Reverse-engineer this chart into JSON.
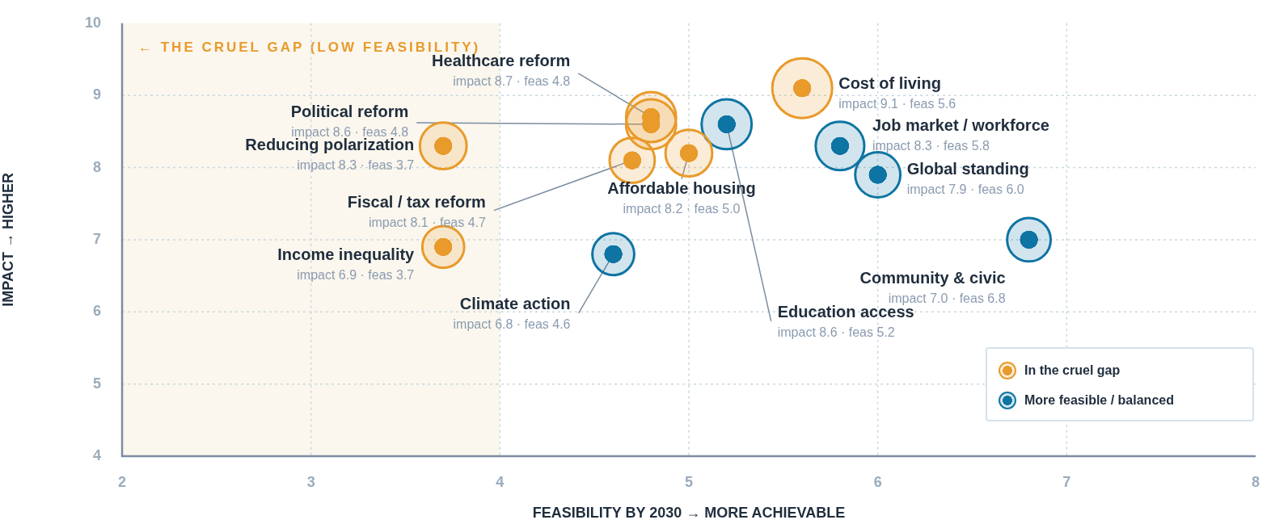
{
  "chart_data": {
    "type": "bubble",
    "xlabel": "FEASIBILITY BY 2030 → MORE ACHIEVABLE",
    "ylabel": "IMPACT → HIGHER",
    "xlim": [
      2,
      8
    ],
    "xticks": [
      2,
      3,
      4,
      5,
      6,
      7,
      8
    ],
    "ylim": [
      4,
      10
    ],
    "yticks": [
      4,
      5,
      6,
      7,
      8,
      9,
      10
    ],
    "grid": true,
    "legend": "bottom right",
    "bands": [
      {
        "axis": "x",
        "from": 2,
        "to": 4,
        "label": "← THE CRUEL GAP (LOW FEASIBILITY)",
        "color": "#fbf7ee"
      }
    ],
    "annotations": [
      {
        "text": "Healthcare reform",
        "x": 4.8,
        "y": 8.7
      },
      {
        "text": "Political reform",
        "x": 4.8,
        "y": 8.6
      },
      {
        "text": "Reducing polarization",
        "x": 3.7,
        "y": 8.3
      },
      {
        "text": "Fiscal / tax reform",
        "x": 4.7,
        "y": 8.1
      },
      {
        "text": "Income inequality",
        "x": 3.7,
        "y": 6.9
      },
      {
        "text": "Affordable housing",
        "x": 5.0,
        "y": 8.2
      },
      {
        "text": "Cost of living",
        "x": 5.6,
        "y": 9.1
      },
      {
        "text": "Education access",
        "x": 5.2,
        "y": 8.6
      },
      {
        "text": "Job market / workforce",
        "x": 5.8,
        "y": 8.3
      },
      {
        "text": "Global standing",
        "x": 6.0,
        "y": 7.9
      },
      {
        "text": "Community & civic",
        "x": 6.8,
        "y": 7.0
      },
      {
        "text": "Climate action",
        "x": 4.6,
        "y": 6.8
      }
    ],
    "series": [
      {
        "name": "In the cruel gap",
        "color": "#e89a2a",
        "x": [
          4.8,
          4.8,
          3.7,
          4.7,
          3.7,
          5.0,
          5.6
        ],
        "values": [
          8.7,
          8.6,
          8.3,
          8.1,
          6.9,
          8.2,
          9.1
        ],
        "sizes": [
          0.7,
          0.7,
          0.61,
          0.57,
          0.49,
          0.61,
          1
        ],
        "value_labels": [
          "impact 8.7 · feas 4.8",
          "impact 8.6 · feas 4.8",
          "impact 8.3 · feas 3.7",
          "impact 8.1 · feas 4.7",
          "impact 6.9 · feas 3.7",
          "impact 8.2 · feas 5.0",
          "impact 9.1 · feas 5.6"
        ]
      },
      {
        "name": "More feasible / balanced",
        "color": "#0e74a3",
        "x": [
          5.2,
          5.8,
          6.0,
          6.8,
          4.6
        ],
        "values": [
          8.6,
          8.3,
          7.9,
          7.0,
          6.8
        ],
        "sizes": [
          0.7,
          0.66,
          0.57,
          0.53,
          0.49
        ],
        "value_labels": [
          "impact 8.6 · feas 5.2",
          "impact 8.3 · feas 5.8",
          "impact 7.9 · feas 6.0",
          "impact 7.0 · feas 6.8",
          "impact 6.8 · feas 4.6"
        ]
      }
    ]
  }
}
